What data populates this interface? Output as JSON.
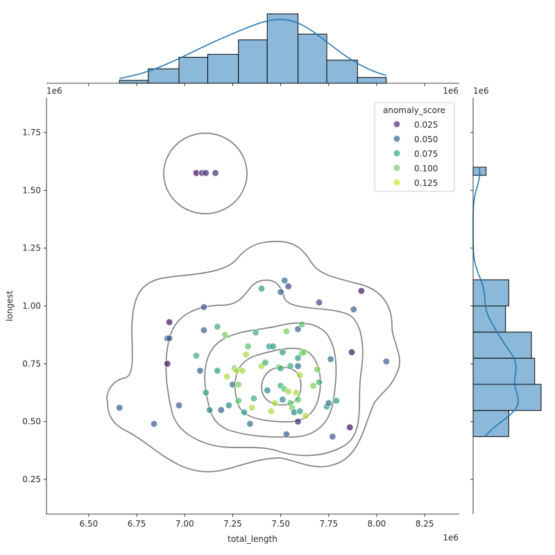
{
  "chart_data": {
    "type": "scatter",
    "title": "",
    "xlabel": "total_length",
    "ylabel": "longest",
    "x_offset_label": "1e6",
    "y_offset_label": "1e6",
    "xlim": [
      6.28,
      8.43
    ],
    "ylim": [
      0.1,
      1.9
    ],
    "x_ticks": [
      "6.50",
      "6.75",
      "7.00",
      "7.25",
      "7.50",
      "7.75",
      "8.00",
      "8.25"
    ],
    "y_ticks": [
      "0.25",
      "0.50",
      "0.75",
      "1.00",
      "1.25",
      "1.50",
      "1.75"
    ],
    "legend": {
      "title": "anomaly_score",
      "placement": "top-right",
      "entries": [
        {
          "label": "0.025",
          "color": "#482878"
        },
        {
          "label": "0.050",
          "color": "#31688e"
        },
        {
          "label": "0.075",
          "color": "#26a784"
        },
        {
          "label": "0.100",
          "color": "#6ccd5a"
        },
        {
          "label": "0.125",
          "color": "#d2e21b"
        }
      ]
    },
    "colors": {
      "hist_fill": "#8cb8d9",
      "hist_edge": "#000000",
      "kde_line": "#1f77b4",
      "contour": "#808080"
    },
    "points": [
      [
        7.06,
        1.575,
        0.02
      ],
      [
        7.09,
        1.575,
        0.03
      ],
      [
        7.11,
        1.575,
        0.03
      ],
      [
        7.16,
        1.575,
        0.03
      ],
      [
        6.92,
        0.93,
        0.02
      ],
      [
        6.91,
        0.86,
        0.04
      ],
      [
        6.92,
        0.86,
        0.05
      ],
      [
        6.91,
        0.75,
        0.02
      ],
      [
        6.66,
        0.56,
        0.05
      ],
      [
        6.84,
        0.49,
        0.05
      ],
      [
        6.97,
        0.57,
        0.05
      ],
      [
        7.08,
        0.72,
        0.05
      ],
      [
        7.1,
        0.995,
        0.05
      ],
      [
        7.1,
        0.895,
        0.05
      ],
      [
        7.06,
        0.785,
        0.09
      ],
      [
        7.11,
        0.625,
        0.08
      ],
      [
        7.13,
        0.55,
        0.07
      ],
      [
        7.19,
        0.55,
        0.05
      ],
      [
        7.17,
        0.91,
        0.09
      ],
      [
        7.17,
        0.72,
        0.08
      ],
      [
        7.21,
        0.875,
        0.11
      ],
      [
        7.22,
        0.695,
        0.12
      ],
      [
        7.23,
        0.57,
        0.07
      ],
      [
        7.25,
        0.66,
        0.06
      ],
      [
        7.26,
        0.73,
        0.11
      ],
      [
        7.27,
        0.72,
        0.12
      ],
      [
        7.28,
        0.66,
        0.11
      ],
      [
        7.28,
        0.59,
        0.1
      ],
      [
        7.3,
        0.72,
        0.12
      ],
      [
        7.31,
        0.54,
        0.08
      ],
      [
        7.32,
        0.79,
        0.12
      ],
      [
        7.33,
        0.825,
        0.1
      ],
      [
        7.34,
        0.49,
        0.06
      ],
      [
        7.35,
        0.56,
        0.12
      ],
      [
        7.36,
        0.6,
        0.09
      ],
      [
        7.37,
        0.885,
        0.09
      ],
      [
        7.4,
        1.075,
        0.08
      ],
      [
        7.4,
        0.74,
        0.12
      ],
      [
        7.42,
        0.755,
        0.09
      ],
      [
        7.43,
        0.635,
        0.07
      ],
      [
        7.44,
        0.825,
        0.08
      ],
      [
        7.45,
        0.545,
        0.12
      ],
      [
        7.46,
        0.825,
        0.08
      ],
      [
        7.47,
        0.58,
        0.12
      ],
      [
        7.49,
        0.735,
        0.11
      ],
      [
        7.5,
        0.73,
        0.09
      ],
      [
        7.5,
        0.655,
        0.09
      ],
      [
        7.5,
        1.06,
        0.05
      ],
      [
        7.51,
        0.8,
        0.08
      ],
      [
        7.51,
        0.595,
        0.07
      ],
      [
        7.52,
        0.64,
        0.1
      ],
      [
        7.52,
        1.11,
        0.06
      ],
      [
        7.53,
        0.445,
        0.05
      ],
      [
        7.53,
        0.89,
        0.11
      ],
      [
        7.54,
        1.085,
        0.04
      ],
      [
        7.54,
        0.63,
        0.12
      ],
      [
        7.55,
        0.58,
        0.1
      ],
      [
        7.55,
        0.74,
        0.09
      ],
      [
        7.56,
        0.56,
        0.11
      ],
      [
        7.57,
        0.54,
        0.07
      ],
      [
        7.58,
        0.625,
        0.12
      ],
      [
        7.59,
        0.595,
        0.1
      ],
      [
        7.59,
        0.5,
        0.03
      ],
      [
        7.59,
        0.9,
        0.05
      ],
      [
        7.59,
        0.74,
        0.06
      ],
      [
        7.59,
        0.775,
        0.08
      ],
      [
        7.6,
        0.7,
        0.12
      ],
      [
        7.6,
        0.545,
        0.08
      ],
      [
        7.61,
        0.92,
        0.1
      ],
      [
        7.61,
        0.795,
        0.1
      ],
      [
        7.62,
        0.8,
        0.11
      ],
      [
        7.63,
        0.525,
        0.12
      ],
      [
        7.67,
        0.655,
        0.11
      ],
      [
        7.69,
        0.725,
        0.11
      ],
      [
        7.7,
        0.67,
        0.09
      ],
      [
        7.7,
        1.015,
        0.04
      ],
      [
        7.74,
        0.565,
        0.08
      ],
      [
        7.75,
        0.58,
        0.06
      ],
      [
        7.76,
        0.77,
        0.06
      ],
      [
        7.77,
        0.435,
        0.05
      ],
      [
        7.79,
        0.59,
        0.08
      ],
      [
        7.86,
        0.475,
        0.02
      ],
      [
        7.87,
        0.8,
        0.02
      ],
      [
        7.88,
        0.985,
        0.05
      ],
      [
        7.92,
        1.065,
        0.02
      ],
      [
        8.05,
        0.76,
        0.05
      ]
    ],
    "x_histogram": {
      "bin_edges": [
        6.66,
        6.81,
        6.97,
        7.12,
        7.28,
        7.43,
        7.59,
        7.74,
        7.9,
        8.05
      ],
      "counts": [
        1,
        5,
        9,
        10,
        15,
        24,
        17,
        8,
        2
      ]
    },
    "y_histogram": {
      "bin_edges": [
        0.435,
        0.548,
        0.661,
        0.774,
        0.887,
        1.0,
        1.113,
        1.226,
        1.339,
        1.452,
        1.565,
        1.6
      ],
      "counts": [
        11,
        21,
        19,
        18,
        10,
        11,
        0,
        0,
        0,
        0,
        4
      ]
    }
  }
}
